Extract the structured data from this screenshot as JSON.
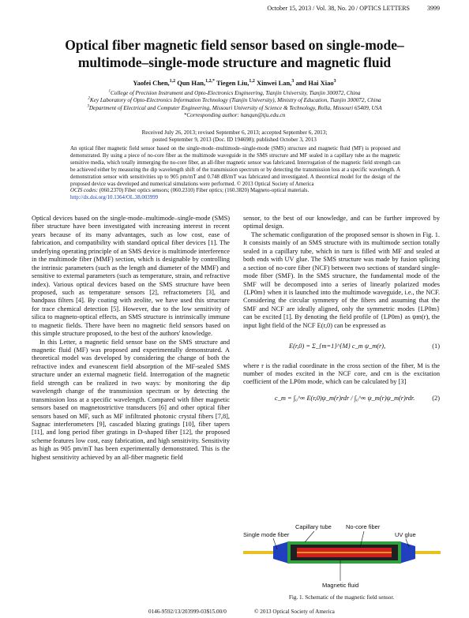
{
  "header": {
    "journal_line": "October 15, 2013 / Vol. 38, No. 20 / OPTICS LETTERS",
    "page": "3999"
  },
  "title": [
    "Optical fiber magnetic field sensor based on single-mode–",
    "multimode–single-mode structure and magnetic fluid"
  ],
  "authors": [
    {
      "name": "Yaofei Chen,",
      "sup": "1,2"
    },
    {
      "name": " Qun Han,",
      "sup": "1,2,*"
    },
    {
      "name": " Tiegen Liu,",
      "sup": "1,2"
    },
    {
      "name": " Xinwei Lan,",
      "sup": "3"
    },
    {
      "name": " and Hai Xiao",
      "sup": "3"
    }
  ],
  "affiliations": [
    {
      "sup": "1",
      "text": "College of Precision Instrument and Opto-Electronics Engineering, Tianjin University, Tianjin 300072, China"
    },
    {
      "sup": "2",
      "text": "Key Laboratory of Opto-Electronics Information Technology (Tianjin University), Ministry of Education, Tianjin 300072, China"
    },
    {
      "sup": "3",
      "text": "Department of Electrical and Computer Engineering, Missouri University of Science & Technology, Rolla, Missouri 65409, USA"
    }
  ],
  "corresponding": "*Corresponding author: hanqun@tju.edu.cn",
  "history": [
    "Received July 26, 2013; revised September 6, 2013; accepted September 6, 2013;",
    "posted September 9, 2013 (Doc. ID 194698); published October 3, 2013"
  ],
  "abstract": "An optical fiber magnetic field sensor based on the single-mode–multimode–single-mode (SMS) structure and magnetic fluid (MF) is proposed and demonstrated. By using a piece of no-core fiber as the multimode waveguide in the SMS structure and MF sealed in a capillary tube as the magnetic sensitive media, which totally immerging the no-core fiber, an all-fiber magnetic sensor was fabricated. Interrogation of the magnetic field strength can be achieved either by measuring the dip wavelength shift of the transmission spectrum or by detecting the transmission loss at a specific wavelength. A demonstration sensor with sensitivities up to 905 pm/mT and 0.748 dB/mT was fabricated and investigated. A theoretical model for the design of the proposed device was developed and numerical simulations were performed.  © 2013 Optical Society of America",
  "ocis_label": "OCIS codes:",
  "ocis": "(060.2370) Fiber optics sensors; (060.2310) Fiber optics; (160.3820) Magneto-optical materials.",
  "doi": "http://dx.doi.org/10.1364/OL.38.003999",
  "left_column": [
    "Optical devices based on the single-mode–multimode–single-mode (SMS) fiber structure have been investigated with increasing interest in recent years because of its many advantages, such as low cost, ease of fabrication, and compatibility with standard optical fiber devices [1]. The underlying operating principle of an SMS device is multimode interference in the multimode fiber (MMF) section, which is designable by controlling the intrinsic parameters (such as the length and diameter of the MMF) and sensitive to external parameters (such as temperature, strain, and refractive index). Various optical devices based on the SMS structure have been proposed, such as temperature sensors [2], refractometers [3], and bandpass filters [4]. By coating with zeolite, we have used this structure for trace chemical detection [5]. However, due to the low sensitivity of silica to magneto-optical effects, an SMS structure is intrinsically immune to magnetic fields. There have been no magnetic field sensors based on this simple structure proposed, to the best of the authors' knowledge.",
    "In this Letter, a magnetic field sensor base on the SMS structure and magnetic fluid (MF) was proposed and experimentally demonstrated. A theoretical model was developed by considering the change of both the refractive index and evanescent field absorption of the MF-sealed SMS structure under an external magnetic field. Interrogation of the magnetic field strength can be realized in two ways: by monitoring the dip wavelength change of the transmission spectrum or by detecting the transmission loss at a specific wavelength. Compared with fiber magnetic sensors based on magnetostrictive transducers [6] and other optical fiber sensors based on MF, such as MF infiltrated photonic crystal fibers [7,8], Sagnac interferometers [9], cascaded blazing gratings [10], fiber tapers [11], and long period fiber gratings in D-shaped fiber [12], the proposed scheme features low cost, easy fabrication, and high sensitivity. Sensitivity as high as 905 pm/mT has been experimentally demonstrated. This is the highest sensitivity achieved by an all-fiber magnetic field"
  ],
  "right_column": {
    "continuation": "sensor, to the best of our knowledge, and can be further improved by optimal design.",
    "paragraph": "The schematic configuration of the proposed sensor is shown in Fig. 1. It consists mainly of an SMS structure with its multimode section totally sealed in a capillary tube, which in turn is filled with MF and sealed at both ends with UV glue. The SMS structure was made by fusion splicing a section of no-core fiber (NCF) between two sections of standard single-mode fiber (SMF). In the SMS structure, the fundamental mode of the SMF will be decomposed into a series of linearly polarized modes {LP0m} when it is launched into the multimode waveguide, i.e., the NCF. Considering the circular symmetry of the fibers and assuming that the SMF and NCF are ideally aligned, only the symmetric modes {LP0m} can be excited [1]. By denoting the field profile of {LP0m} as ψm(r), the input light field of the NCF E(r,0) can be expressed as",
    "equation_1": {
      "text": "E(r,0) = Σ_{m=1}^{M} c_m ψ_m(r),",
      "number": "(1)"
    },
    "after_eq1": "where r is the radial coordinate in the cross section of the fiber, M is the number of modes excited in the NCF core, and cm is the excitation coefficient of the LP0m mode, which can be calculated by [3]",
    "equation_2": {
      "text": "c_m = ∫₀^∞ E(r,0)ψ_m(r)rdr / ∫₀^∞ ψ_m(r)ψ_m(r)rdr.",
      "number": "(2)"
    }
  },
  "figure": {
    "labels": {
      "smf": "Single mode fiber",
      "capillary": "Capillary tube",
      "ncf": "No-core fiber",
      "glue": "UV glue",
      "fluid": "Magnetic fluid"
    },
    "caption": "Fig. 1.   Schematic of the magnetic field sensor."
  },
  "footer": {
    "code": "0146-9592/13/203999-03$15.00/0",
    "copyright": "© 2013 Optical Society of America"
  }
}
